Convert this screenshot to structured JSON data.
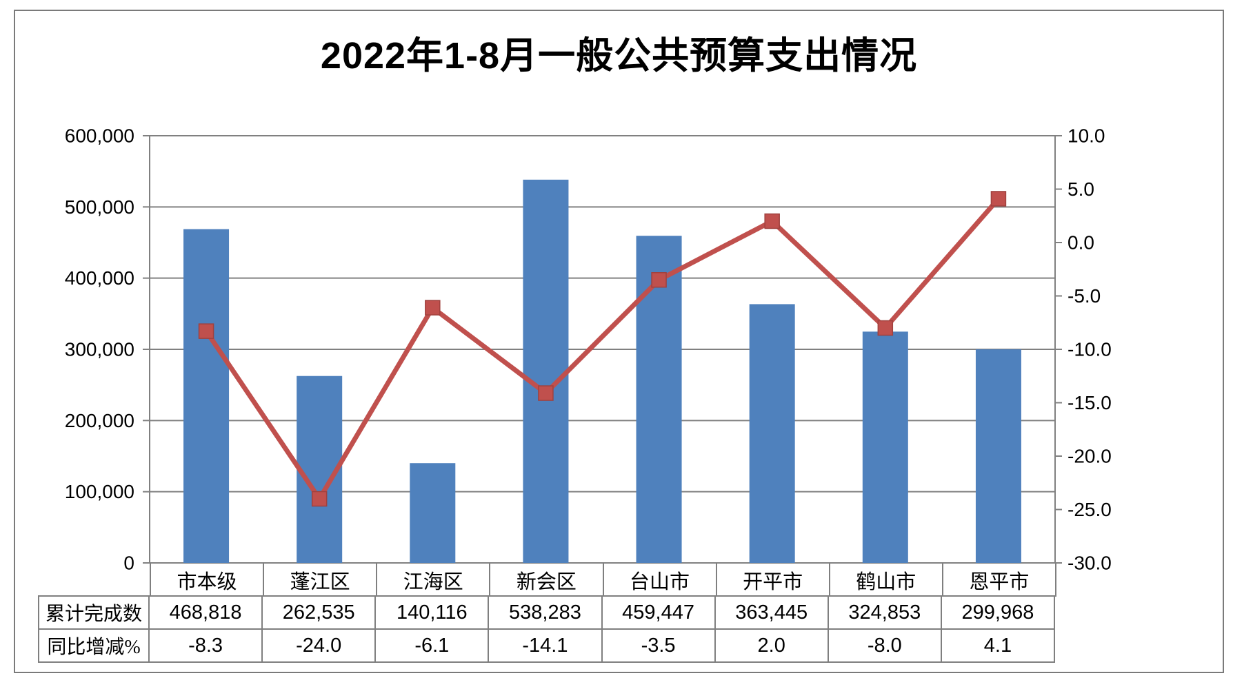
{
  "title": "2022年1-8月一般公共预算支出情况",
  "chart_data": {
    "type": "combo",
    "title": "2022年1-8月一般公共预算支出情况",
    "categories": [
      "市本级",
      "蓬江区",
      "江海区",
      "新会区",
      "台山市",
      "开平市",
      "鹤山市",
      "恩平市"
    ],
    "series": [
      {
        "name": "累计完成数",
        "type": "bar",
        "axis": "left",
        "color": "#4f81bd",
        "values": [
          468818,
          262535,
          140116,
          538283,
          459447,
          363445,
          324853,
          299968
        ]
      },
      {
        "name": "同比增减%",
        "type": "line",
        "axis": "right",
        "color": "#c0504d",
        "marker": "square",
        "values": [
          -8.3,
          -24.0,
          -6.1,
          -14.1,
          -3.5,
          2.0,
          -8.0,
          4.1
        ]
      }
    ],
    "left_axis": {
      "min": 0,
      "max": 600000,
      "step": 100000,
      "tick_labels": [
        "0",
        "100,000",
        "200,000",
        "300,000",
        "400,000",
        "500,000",
        "600,000"
      ]
    },
    "right_axis": {
      "min": -30,
      "max": 10,
      "step": 5,
      "tick_labels": [
        "-30.0",
        "-25.0",
        "-20.0",
        "-15.0",
        "-10.0",
        "-5.0",
        "0.0",
        "5.0",
        "10.0"
      ]
    },
    "grid": true,
    "legend": "none",
    "xlabel": "",
    "ylabel": ""
  },
  "table": {
    "rows": [
      {
        "label": "累计完成数",
        "values": [
          "468,818",
          "262,535",
          "140,116",
          "538,283",
          "459,447",
          "363,445",
          "324,853",
          "299,968"
        ]
      },
      {
        "label": "同比增减%",
        "values": [
          "-8.3",
          "-24.0",
          "-6.1",
          "-14.1",
          "-3.5",
          "2.0",
          "-8.0",
          "4.1"
        ]
      }
    ]
  },
  "colors": {
    "bar": "#4f81bd",
    "line": "#c0504d",
    "marker_edge": "#a0413e",
    "grid": "#808080",
    "axis": "#808080",
    "frame": "#7a7a7a",
    "text": "#000000"
  }
}
